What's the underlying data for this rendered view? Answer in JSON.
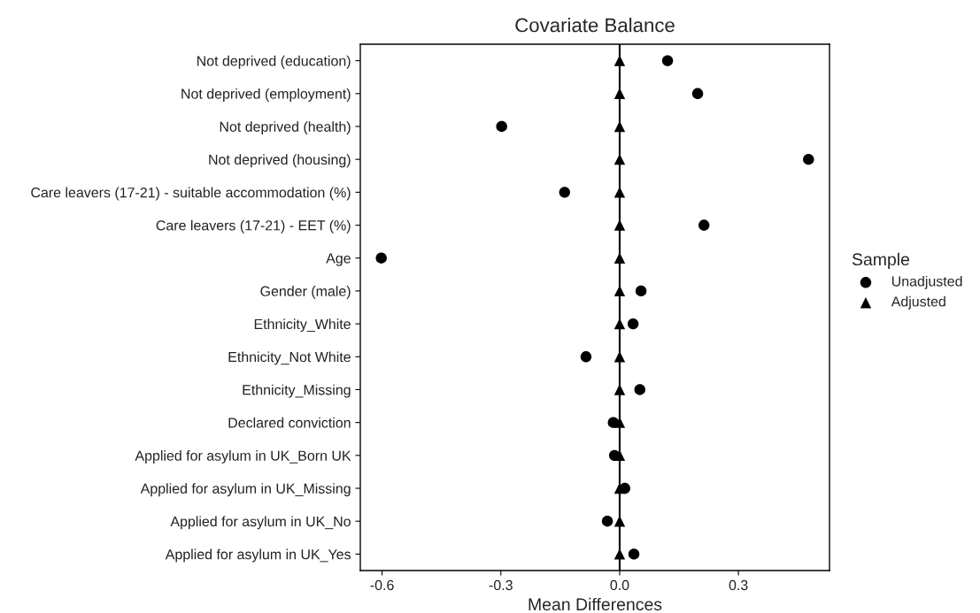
{
  "chart_data": {
    "type": "scatter",
    "orientation": "horizontal",
    "title": "Covariate Balance",
    "xlabel": "Mean Differences",
    "legend_title": "Sample",
    "legend": "right",
    "grid": false,
    "categories": [
      "Not deprived (education)",
      "Not deprived (employment)",
      "Not deprived (health)",
      "Not deprived (housing)",
      "Care leavers (17-21) - suitable accommodation (%)",
      "Care leavers (17-21) - EET (%)",
      "Age",
      "Gender (male)",
      "Ethnicity_White",
      "Ethnicity_Not White",
      "Ethnicity_Missing",
      "Declared conviction",
      "Applied for asylum in UK_Born UK",
      "Applied for asylum in UK_Missing",
      "Applied for asylum in UK_No",
      "Applied for asylum in UK_Yes"
    ],
    "series": [
      {
        "name": "Unadjusted",
        "color": "#000000",
        "marker": "circle",
        "values": [
          0.121,
          0.197,
          -0.298,
          0.477,
          -0.139,
          0.213,
          -0.602,
          0.054,
          0.034,
          -0.085,
          0.051,
          -0.016,
          -0.013,
          0.013,
          -0.031,
          0.036
        ]
      },
      {
        "name": "Adjusted",
        "color": "#000000",
        "marker": "triangle",
        "values": [
          0,
          0,
          0,
          0,
          0,
          0,
          0,
          0,
          0,
          0,
          0,
          0,
          0,
          0,
          0,
          0
        ]
      }
    ],
    "xlim": [
      -0.655,
      0.53
    ],
    "xticks": [
      {
        "value": -0.6,
        "label": "-0.6"
      },
      {
        "value": -0.3,
        "label": "-0.3"
      },
      {
        "value": 0,
        "label": "0.0"
      },
      {
        "value": 0.3,
        "label": "0.3"
      }
    ],
    "ref_lines": [
      {
        "axis": "x",
        "value": 0,
        "color": "#000000",
        "line_style": "solid"
      }
    ]
  }
}
